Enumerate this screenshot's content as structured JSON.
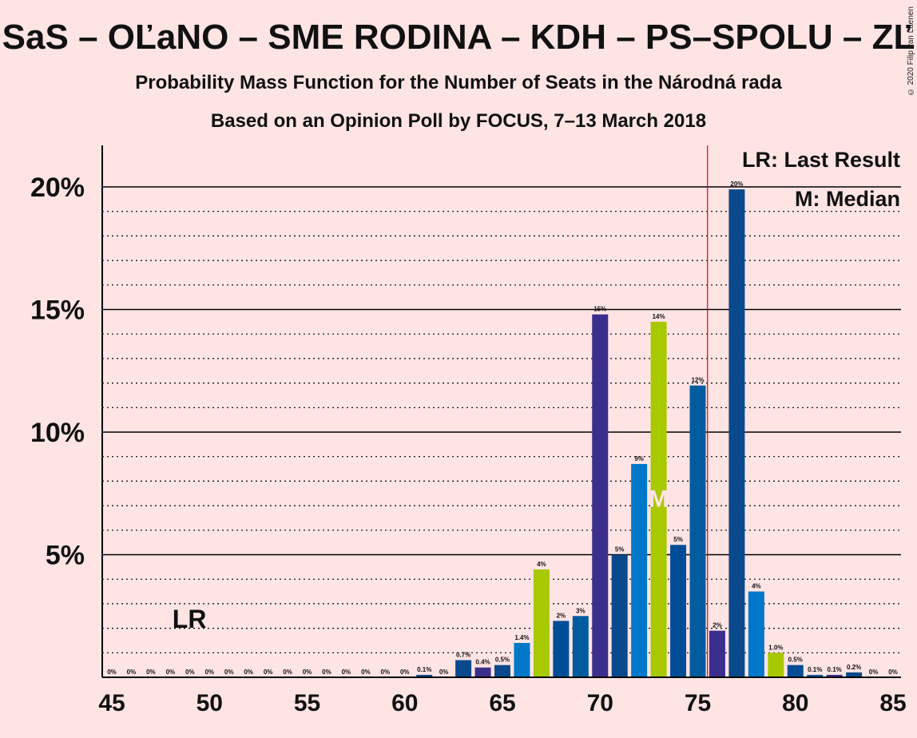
{
  "title": "SaS – OĽaNO – SME RODINA – KDH – PS–SPOLU – ZĽ",
  "subtitle1": "Probability Mass Function for the Number of Seats in the Národná rada",
  "subtitle2": "Based on an Opinion Poll by FOCUS, 7–13 March 2018",
  "copyright": "© 2020 Filip van Laenen",
  "legend": {
    "last_result": "LR: Last Result",
    "median": "M: Median"
  },
  "markers": {
    "lr_label": "LR",
    "lr_seat": 49,
    "median_label": "M",
    "median_seat": 73,
    "majority_line": 75.5
  },
  "colors": {
    "background": "#FFE4E4",
    "majority_line": "#E8000C",
    "palette": [
      "#0A4A8C",
      "#0077C8",
      "#3C2E8C",
      "#A8C800",
      "#004C97",
      "#005C9E"
    ]
  },
  "chart_data": {
    "type": "bar",
    "xlim": [
      45,
      85
    ],
    "ylim": [
      0,
      21.7
    ],
    "yticks": [
      "5%",
      "10%",
      "15%",
      "20%"
    ],
    "ytick_values": [
      5,
      10,
      15,
      20
    ],
    "xticks": [
      "45",
      "50",
      "55",
      "60",
      "65",
      "70",
      "75",
      "80",
      "85"
    ],
    "xtick_values": [
      45,
      50,
      55,
      60,
      65,
      70,
      75,
      80,
      85
    ],
    "bars": [
      {
        "x": 45,
        "value": 0,
        "label": "0%",
        "color": "#0A4A8C"
      },
      {
        "x": 46,
        "value": 0,
        "label": "0%",
        "color": "#0A4A8C"
      },
      {
        "x": 47,
        "value": 0,
        "label": "0%",
        "color": "#0A4A8C"
      },
      {
        "x": 48,
        "value": 0,
        "label": "0%",
        "color": "#0A4A8C"
      },
      {
        "x": 49,
        "value": 0,
        "label": "0%",
        "color": "#0A4A8C"
      },
      {
        "x": 50,
        "value": 0,
        "label": "0%",
        "color": "#0A4A8C"
      },
      {
        "x": 51,
        "value": 0,
        "label": "0%",
        "color": "#0A4A8C"
      },
      {
        "x": 52,
        "value": 0,
        "label": "0%",
        "color": "#0A4A8C"
      },
      {
        "x": 53,
        "value": 0,
        "label": "0%",
        "color": "#0A4A8C"
      },
      {
        "x": 54,
        "value": 0,
        "label": "0%",
        "color": "#0A4A8C"
      },
      {
        "x": 55,
        "value": 0,
        "label": "0%",
        "color": "#0A4A8C"
      },
      {
        "x": 56,
        "value": 0,
        "label": "0%",
        "color": "#0A4A8C"
      },
      {
        "x": 57,
        "value": 0,
        "label": "0%",
        "color": "#0A4A8C"
      },
      {
        "x": 58,
        "value": 0,
        "label": "0%",
        "color": "#0A4A8C"
      },
      {
        "x": 59,
        "value": 0,
        "label": "0%",
        "color": "#0A4A8C"
      },
      {
        "x": 60,
        "value": 0,
        "label": "0%",
        "color": "#0A4A8C"
      },
      {
        "x": 61,
        "value": 0.1,
        "label": "0.1%",
        "color": "#0A4A8C"
      },
      {
        "x": 62,
        "value": 0,
        "label": "0%",
        "color": "#0A4A8C"
      },
      {
        "x": 63,
        "value": 0.7,
        "label": "0.7%",
        "color": "#0A4A8C"
      },
      {
        "x": 64,
        "value": 0.4,
        "label": "0.4%",
        "color": "#3C2E8C"
      },
      {
        "x": 65,
        "value": 0.5,
        "label": "0.5%",
        "color": "#0A4A8C"
      },
      {
        "x": 66,
        "value": 1.4,
        "label": "1.4%",
        "color": "#0077C8"
      },
      {
        "x": 67,
        "value": 4.4,
        "label": "4%",
        "color": "#A8C800"
      },
      {
        "x": 68,
        "value": 2.3,
        "label": "2%",
        "color": "#004C97"
      },
      {
        "x": 69,
        "value": 2.5,
        "label": "3%",
        "color": "#005C9E"
      },
      {
        "x": 70,
        "value": 14.8,
        "label": "15%",
        "color": "#3C2E8C"
      },
      {
        "x": 71,
        "value": 5.0,
        "label": "5%",
        "color": "#0A4A8C"
      },
      {
        "x": 72,
        "value": 8.7,
        "label": "9%",
        "color": "#0077C8"
      },
      {
        "x": 73,
        "value": 14.5,
        "label": "14%",
        "color": "#A8C800"
      },
      {
        "x": 74,
        "value": 5.4,
        "label": "5%",
        "color": "#004C97"
      },
      {
        "x": 75,
        "value": 11.9,
        "label": "12%",
        "color": "#005C9E"
      },
      {
        "x": 76,
        "value": 1.9,
        "label": "2%",
        "color": "#3C2E8C"
      },
      {
        "x": 77,
        "value": 19.9,
        "label": "20%",
        "color": "#0A4A8C"
      },
      {
        "x": 78,
        "value": 3.5,
        "label": "4%",
        "color": "#0077C8"
      },
      {
        "x": 79,
        "value": 1.0,
        "label": "1.0%",
        "color": "#A8C800"
      },
      {
        "x": 80,
        "value": 0.5,
        "label": "0.5%",
        "color": "#004C97"
      },
      {
        "x": 81,
        "value": 0.1,
        "label": "0.1%",
        "color": "#005C9E"
      },
      {
        "x": 82,
        "value": 0.1,
        "label": "0.1%",
        "color": "#3C2E8C"
      },
      {
        "x": 83,
        "value": 0.2,
        "label": "0.2%",
        "color": "#0A4A8C"
      },
      {
        "x": 84,
        "value": 0,
        "label": "0%",
        "color": "#0A4A8C"
      },
      {
        "x": 85,
        "value": 0,
        "label": "0%",
        "color": "#0A4A8C"
      }
    ]
  }
}
